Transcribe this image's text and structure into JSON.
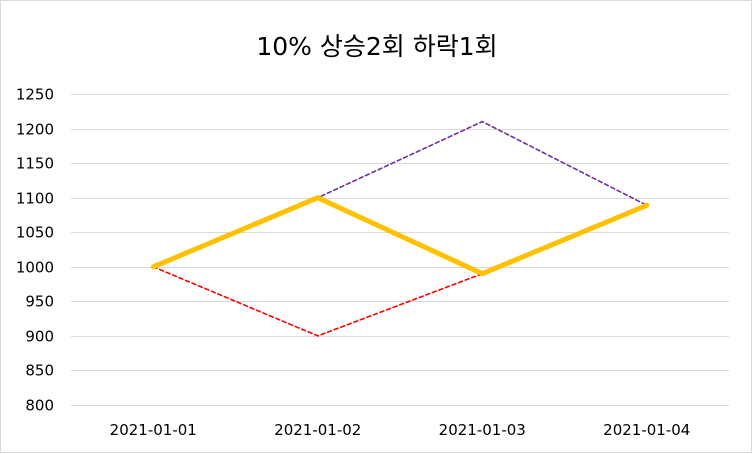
{
  "chart_data": {
    "type": "line",
    "title": "10% 상승2회 하락1회",
    "xlabel": "",
    "ylabel": "",
    "categories": [
      "2021-01-01",
      "2021-01-02",
      "2021-01-03",
      "2021-01-04"
    ],
    "ylim": [
      800,
      1250
    ],
    "yticks": [
      800,
      850,
      900,
      950,
      1000,
      1050,
      1100,
      1150,
      1200,
      1250
    ],
    "grid": true,
    "legend": "none",
    "series": [
      {
        "values": [
          1000,
          1100,
          1210,
          1089
        ],
        "color": "#7030a0",
        "style": "dashed",
        "weight": "thin"
      },
      {
        "values": [
          1000,
          900,
          990,
          1089
        ],
        "color": "#ff0000",
        "style": "dashed",
        "weight": "thin"
      },
      {
        "values": [
          1000,
          1100,
          990,
          1089
        ],
        "color": "#ffc000",
        "style": "solid",
        "weight": "thick"
      }
    ]
  }
}
